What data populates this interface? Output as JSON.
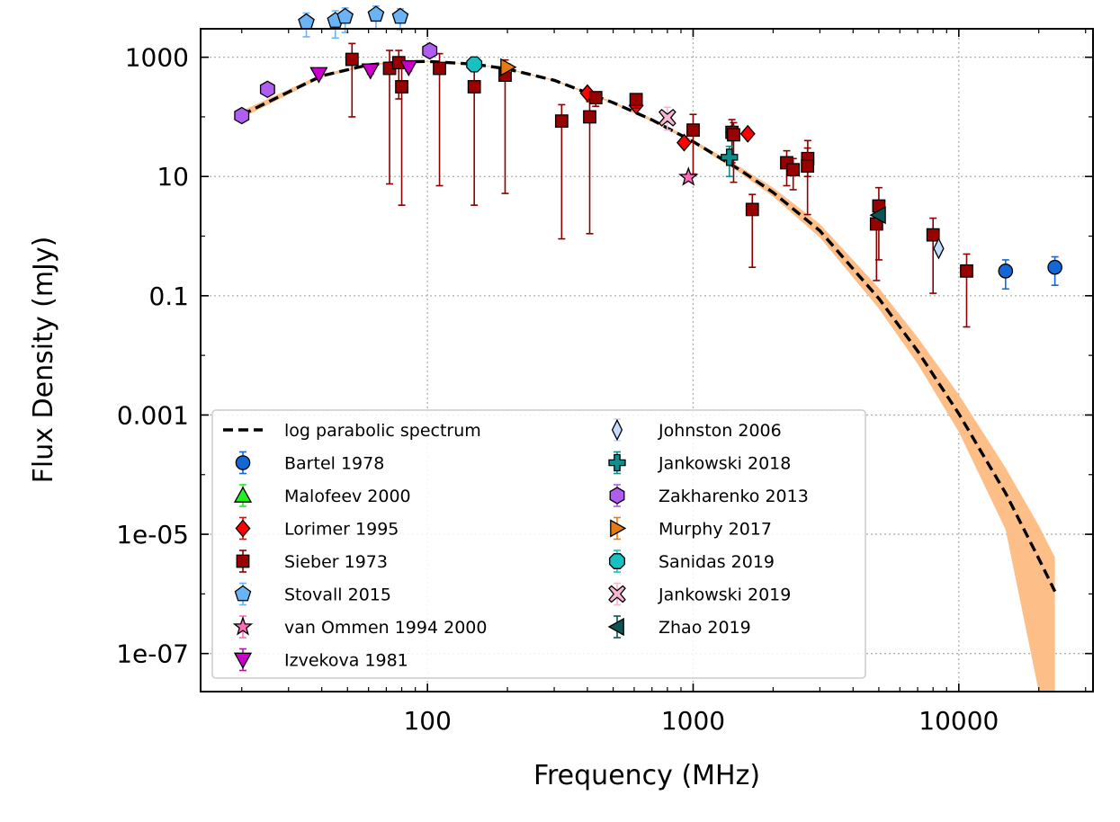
{
  "chart_data": {
    "type": "scatter",
    "title": "",
    "xlabel": "Frequency (MHz)",
    "ylabel": "Flux Density (mJy)",
    "xscale": "log",
    "yscale": "log",
    "xlim": [
      14,
      32000
    ],
    "ylim": [
      2.3e-08,
      3000
    ],
    "x_ticks": [
      100,
      1000,
      10000
    ],
    "x_tick_labels": [
      "100",
      "1000",
      "10000"
    ],
    "y_ticks": [
      1e-07,
      1e-05,
      0.001,
      0.1,
      10,
      1000
    ],
    "y_tick_labels": [
      "1e-07",
      "1e-05",
      "0.001",
      "0.1",
      "10",
      "1000"
    ],
    "grid": true,
    "legend_position": "lower-left",
    "fit": {
      "name": "log parabolic spectrum",
      "x": [
        20,
        40,
        60,
        80,
        100,
        150,
        200,
        300,
        500,
        700,
        1000,
        1500,
        2000,
        3000,
        5000,
        7000,
        10000,
        15000,
        20000,
        23000
      ],
      "y": [
        108,
        488,
        744,
        835,
        851,
        765,
        636,
        410,
        173,
        89,
        38.5,
        12.9,
        5.4,
        1.23,
        0.09,
        0.0118,
        0.00105,
        4.9e-05,
        3.9e-06,
        1.1e-06
      ],
      "band_upper": [
        126,
        520,
        770,
        850,
        860,
        775,
        648,
        420,
        180,
        94,
        41,
        14.5,
        6.5,
        1.6,
        0.135,
        0.02,
        0.0022,
        0.00013,
        1.4e-05,
        4.1e-06
      ],
      "band_lower": [
        95,
        455,
        718,
        818,
        842,
        755,
        622,
        398,
        165,
        84,
        36,
        11.5,
        4.6,
        0.95,
        0.061,
        0.0072,
        0.00052,
        1.2e-05,
        2.3e-08,
        2.3e-08
      ]
    },
    "series": [
      {
        "name": "Bartel 1978",
        "marker": "circle",
        "color": "#1467d4",
        "x": [
          15000,
          23000
        ],
        "y": [
          0.26,
          0.3
        ],
        "err_low": [
          0.13,
          0.15
        ],
        "err_high": [
          0.4,
          0.45
        ]
      },
      {
        "name": "Malofeev 2000",
        "marker": "triangle-up",
        "color": "#22ee22",
        "x": [],
        "y": [],
        "err_low": [],
        "err_high": []
      },
      {
        "name": "Lorimer 1995",
        "marker": "diamond",
        "color": "#ff0000",
        "x": [
          400,
          610,
          925,
          1408,
          1606
        ],
        "y": [
          250,
          155,
          37,
          55,
          52
        ],
        "err_low": [
          220,
          130,
          32,
          48,
          46
        ],
        "err_high": [
          280,
          180,
          42,
          62,
          58
        ]
      },
      {
        "name": "Sieber 1973",
        "marker": "square",
        "color": "#990000",
        "x": [
          52,
          72,
          78,
          80,
          111,
          150,
          196,
          320,
          408,
          430,
          610,
          1000,
          1400,
          1420,
          1670,
          2250,
          2380,
          2700,
          2695,
          4900,
          5000,
          8000,
          10700
        ],
        "y": [
          920,
          650,
          810,
          320,
          650,
          320,
          500,
          85,
          100,
          210,
          195,
          60,
          55,
          50,
          2.8,
          17,
          13,
          20,
          15,
          1.6,
          3.2,
          1.05,
          0.26
        ],
        "err_low": [
          100,
          7.5,
          200,
          3.3,
          7,
          3.3,
          5.2,
          0.9,
          1.1,
          150,
          140,
          11,
          17,
          8,
          0.3,
          7,
          6,
          10,
          2.3,
          0.18,
          0.4,
          0.11,
          0.03
        ],
        "err_high": [
          1700,
          1300,
          1300,
          700,
          1150,
          600,
          900,
          160,
          180,
          260,
          230,
          110,
          90,
          80,
          5,
          27,
          20,
          40,
          30,
          3,
          6.5,
          2,
          0.5
        ]
      },
      {
        "name": "Stovall 2015",
        "marker": "pentagon",
        "color": "#6ab4f5",
        "x": [
          35,
          45,
          49,
          64,
          79
        ],
        "y": [
          3900,
          4100,
          4800,
          5200,
          4800
        ],
        "err_low": [
          2200,
          2100,
          2600,
          3000,
          2900
        ],
        "err_high": [
          5500,
          6000,
          6700,
          7200,
          6500
        ]
      },
      {
        "name": "van Ommen 1994 2000",
        "marker": "star",
        "color": "#ff6eb4",
        "x": [
          960
        ],
        "y": [
          9.7
        ],
        "err_low": [
          8.3
        ],
        "err_high": [
          11.1
        ]
      },
      {
        "name": "Izvekova 1981",
        "marker": "triangle-down",
        "color": "#cc00cc",
        "x": [
          39,
          61,
          85
        ],
        "y": [
          520,
          600,
          680
        ],
        "err_low": [
          450,
          520,
          590
        ],
        "err_high": [
          590,
          680,
          770
        ]
      },
      {
        "name": "Johnston 2006",
        "marker": "thin-diamond",
        "color": "#c6dcff",
        "x": [
          8400
        ],
        "y": [
          0.62
        ],
        "err_low": [
          0.5
        ],
        "err_high": [
          0.75
        ]
      },
      {
        "name": "Jankowski 2018",
        "marker": "plus",
        "color": "#148c8c",
        "x": [
          1369
        ],
        "y": [
          21
        ],
        "err_low": [
          10
        ],
        "err_high": [
          32
        ]
      },
      {
        "name": "Zakharenko 2013",
        "marker": "hexagon",
        "color": "#b05ef0",
        "x": [
          20,
          25,
          102
        ],
        "y": [
          105,
          290,
          1280
        ],
        "err_low": [
          90,
          250,
          1100
        ],
        "err_high": [
          120,
          330,
          1460
        ]
      },
      {
        "name": "Murphy 2017",
        "marker": "triangle-right",
        "color": "#e57c13",
        "x": [
          200
        ],
        "y": [
          680
        ],
        "err_low": [
          590
        ],
        "err_high": [
          770
        ]
      },
      {
        "name": "Sanidas 2019",
        "marker": "octagon",
        "color": "#17c1c1",
        "x": [
          150
        ],
        "y": [
          760
        ],
        "err_low": [
          660
        ],
        "err_high": [
          860
        ]
      },
      {
        "name": "Jankowski 2019",
        "marker": "x",
        "color": "#f7b6d2",
        "x": [
          800
        ],
        "y": [
          97
        ],
        "err_low": [
          60
        ],
        "err_high": [
          145
        ]
      },
      {
        "name": "Zhao 2019",
        "marker": "triangle-left",
        "color": "#0f5454",
        "x": [
          5000
        ],
        "y": [
          2.25
        ],
        "err_low": [
          1.9
        ],
        "err_high": [
          2.6
        ]
      }
    ]
  }
}
